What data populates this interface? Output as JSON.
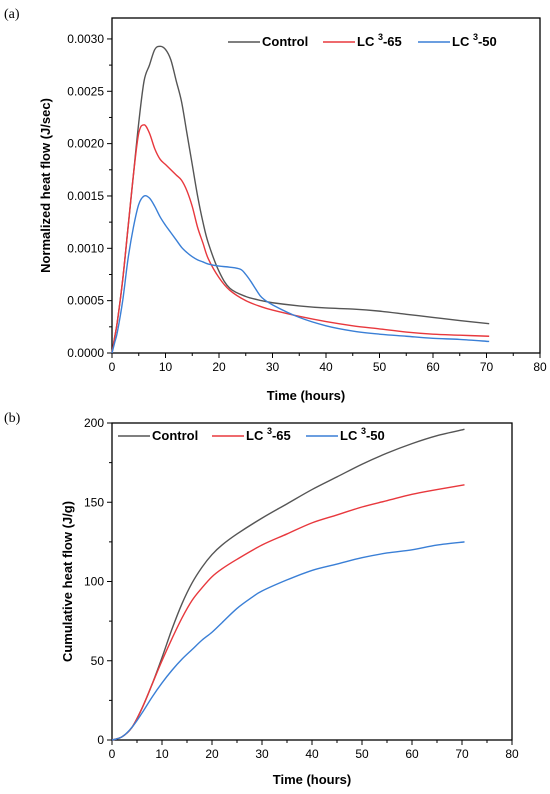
{
  "chart_data": [
    {
      "panel": "(a)",
      "type": "line",
      "title": "",
      "xlabel": "Time (hours)",
      "ylabel": "Normalized heat flow (J/sec)",
      "xlim": [
        0,
        80
      ],
      "ylim": [
        0,
        0.0032
      ],
      "xticks": [
        0,
        10,
        20,
        30,
        40,
        50,
        60,
        70,
        80
      ],
      "yticks": [
        "0.0000",
        "0.0005",
        "0.0010",
        "0.0015",
        "0.0020",
        "0.0025",
        "0.0030"
      ],
      "legend_position": "top-right",
      "grid": false,
      "series": [
        {
          "name": "Control",
          "legend": {
            "pre": "Control",
            "sup": "",
            "post": ""
          },
          "color": "#555555",
          "x": [
            0,
            0.5,
            1,
            2,
            3,
            4,
            5,
            6,
            7,
            8,
            9,
            10,
            11,
            12,
            13,
            14,
            15,
            16,
            17,
            18,
            20,
            22,
            25,
            28,
            30,
            35,
            40,
            45,
            50,
            55,
            60,
            65,
            70.5
          ],
          "y": [
            0.0,
            0.00015,
            0.0003,
            0.0007,
            0.0012,
            0.0017,
            0.0022,
            0.0026,
            0.00275,
            0.0029,
            0.00293,
            0.0029,
            0.0028,
            0.0026,
            0.0024,
            0.0021,
            0.0018,
            0.0015,
            0.00125,
            0.00105,
            0.00078,
            0.00062,
            0.00054,
            0.0005,
            0.00048,
            0.00045,
            0.00043,
            0.00042,
            0.0004,
            0.00037,
            0.00034,
            0.00031,
            0.00028
          ]
        },
        {
          "name": "LC 3-65",
          "legend": {
            "pre": "LC ",
            "sup": "3",
            "post": "-65"
          },
          "color": "#e8383d",
          "x": [
            0,
            0.5,
            1,
            2,
            3,
            4,
            5,
            6,
            7,
            8,
            9,
            10,
            11,
            12,
            13,
            14,
            15,
            16,
            17,
            18,
            20,
            22,
            25,
            28,
            30,
            35,
            40,
            45,
            50,
            55,
            60,
            65,
            70.5
          ],
          "y": [
            0.0,
            0.00015,
            0.0003,
            0.0007,
            0.0012,
            0.0017,
            0.0021,
            0.00218,
            0.0021,
            0.00195,
            0.00185,
            0.0018,
            0.00175,
            0.0017,
            0.00165,
            0.00155,
            0.0014,
            0.0012,
            0.00105,
            0.0009,
            0.00072,
            0.0006,
            0.0005,
            0.00044,
            0.00041,
            0.00035,
            0.0003,
            0.00026,
            0.00023,
            0.0002,
            0.00018,
            0.00017,
            0.00016
          ]
        },
        {
          "name": "LC 3-50",
          "legend": {
            "pre": "LC ",
            "sup": "3",
            "post": "-50"
          },
          "color": "#3a7fd6",
          "x": [
            0,
            0.5,
            1,
            2,
            3,
            4,
            5,
            6,
            7,
            8,
            9,
            10,
            11,
            12,
            13,
            14,
            15,
            16,
            17,
            18,
            20,
            22,
            24,
            25,
            26,
            27,
            28,
            30,
            35,
            40,
            45,
            50,
            55,
            60,
            65,
            70.5
          ],
          "y": [
            0.0,
            0.0001,
            0.0002,
            0.0005,
            0.0009,
            0.0012,
            0.00142,
            0.0015,
            0.00148,
            0.0014,
            0.0013,
            0.00122,
            0.00115,
            0.00108,
            0.00101,
            0.00096,
            0.00092,
            0.00089,
            0.00087,
            0.00085,
            0.00083,
            0.00082,
            0.0008,
            0.00075,
            0.00068,
            0.0006,
            0.00053,
            0.00046,
            0.00034,
            0.00026,
            0.00021,
            0.00018,
            0.00016,
            0.00014,
            0.00013,
            0.00011
          ]
        }
      ]
    },
    {
      "panel": "(b)",
      "type": "line",
      "title": "",
      "xlabel": "Time (hours)",
      "ylabel": "Cumulative heat flow (J/g)",
      "xlim": [
        0,
        80
      ],
      "ylim": [
        0,
        200
      ],
      "xticks": [
        0,
        10,
        20,
        30,
        40,
        50,
        60,
        70,
        80
      ],
      "yticks": [
        "0",
        "50",
        "100",
        "150",
        "200"
      ],
      "legend_position": "top-left",
      "grid": false,
      "series": [
        {
          "name": "Control",
          "legend": {
            "pre": "Control",
            "sup": "",
            "post": ""
          },
          "color": "#555555",
          "x": [
            0,
            2,
            4,
            6,
            8,
            10,
            12,
            14,
            16,
            18,
            20,
            22,
            25,
            30,
            35,
            40,
            45,
            50,
            55,
            60,
            65,
            70.5
          ],
          "y": [
            0,
            2,
            8,
            20,
            35,
            52,
            70,
            86,
            99,
            109,
            117,
            123,
            130,
            140,
            149,
            158,
            166,
            174,
            181,
            187,
            192,
            196
          ]
        },
        {
          "name": "LC 3-65",
          "legend": {
            "pre": "LC ",
            "sup": "3",
            "post": "-65"
          },
          "color": "#e8383d",
          "x": [
            0,
            2,
            4,
            6,
            8,
            10,
            12,
            14,
            16,
            18,
            20,
            22,
            25,
            30,
            35,
            40,
            45,
            50,
            55,
            60,
            65,
            70.5
          ],
          "y": [
            0,
            2,
            8,
            20,
            35,
            50,
            64,
            77,
            88,
            96,
            103,
            108,
            114,
            123,
            130,
            137,
            142,
            147,
            151,
            155,
            158,
            161
          ]
        },
        {
          "name": "LC 3-50",
          "legend": {
            "pre": "LC ",
            "sup": "3",
            "post": "-50"
          },
          "color": "#3a7fd6",
          "x": [
            0,
            2,
            4,
            6,
            8,
            10,
            12,
            14,
            16,
            18,
            20,
            22,
            25,
            28,
            30,
            35,
            40,
            45,
            50,
            55,
            60,
            65,
            70.5
          ],
          "y": [
            0,
            2,
            8,
            17,
            27,
            36,
            44,
            51,
            57,
            63,
            68,
            74,
            83,
            90,
            94,
            101,
            107,
            111,
            115,
            118,
            120,
            123,
            125
          ]
        }
      ]
    }
  ]
}
